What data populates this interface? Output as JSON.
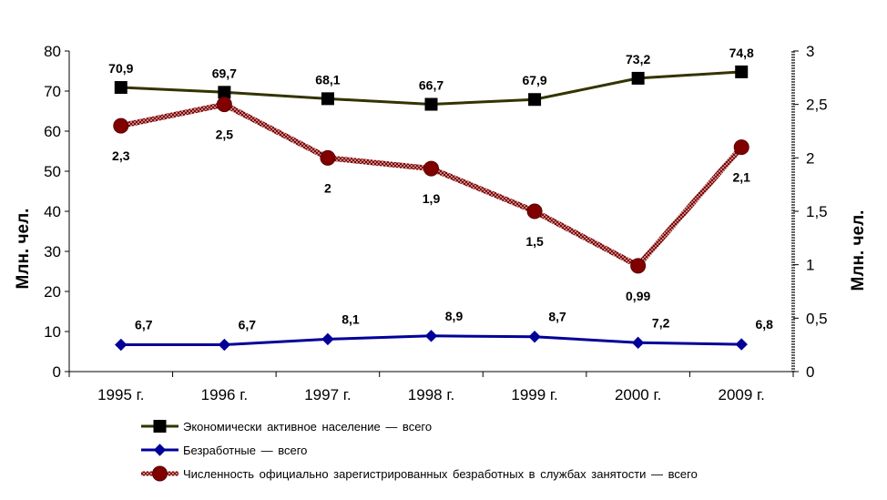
{
  "chart_data": {
    "type": "line",
    "categories": [
      "1995 г.",
      "1996 г.",
      "1997 г.",
      "1998 г.",
      "1999 г.",
      "2000 г.",
      "2009 г."
    ],
    "ylabel_left": "Млн. чел.",
    "ylabel_right": "Млн. чел.",
    "ylim_left": [
      0,
      80
    ],
    "ylim_right": [
      0,
      3
    ],
    "yticks_left": [
      "0",
      "10",
      "20",
      "30",
      "40",
      "50",
      "60",
      "70",
      "80"
    ],
    "yticks_right": [
      "0",
      "0,5",
      "1",
      "1,5",
      "2",
      "2,5",
      "3"
    ],
    "grid": false,
    "legend_position": "bottom",
    "series": [
      {
        "name": "Экономически активное население — всего",
        "axis": "left",
        "color": "#333300",
        "marker": "square",
        "values": [
          70.9,
          69.7,
          68.1,
          66.7,
          67.9,
          73.2,
          74.8
        ],
        "labels": [
          "70,9",
          "69,7",
          "68,1",
          "66,7",
          "67,9",
          "73,2",
          "74,8"
        ]
      },
      {
        "name": "Безработные — всего",
        "axis": "left",
        "color": "#000099",
        "marker": "diamond",
        "values": [
          6.7,
          6.7,
          8.1,
          8.9,
          8.7,
          7.2,
          6.8
        ],
        "labels": [
          "6,7",
          "6,7",
          "8,1",
          "8,9",
          "8,7",
          "7,2",
          "6,8"
        ]
      },
      {
        "name": "Численность официально зарегистрированных безработных в службах занятости — всего",
        "axis": "right",
        "color": "#800000",
        "marker": "circle",
        "values": [
          2.3,
          2.5,
          2.0,
          1.9,
          1.5,
          0.99,
          2.1
        ],
        "labels": [
          "2,3",
          "2,5",
          "2",
          "1,9",
          "1,5",
          "0,99",
          "2,1"
        ]
      }
    ]
  }
}
